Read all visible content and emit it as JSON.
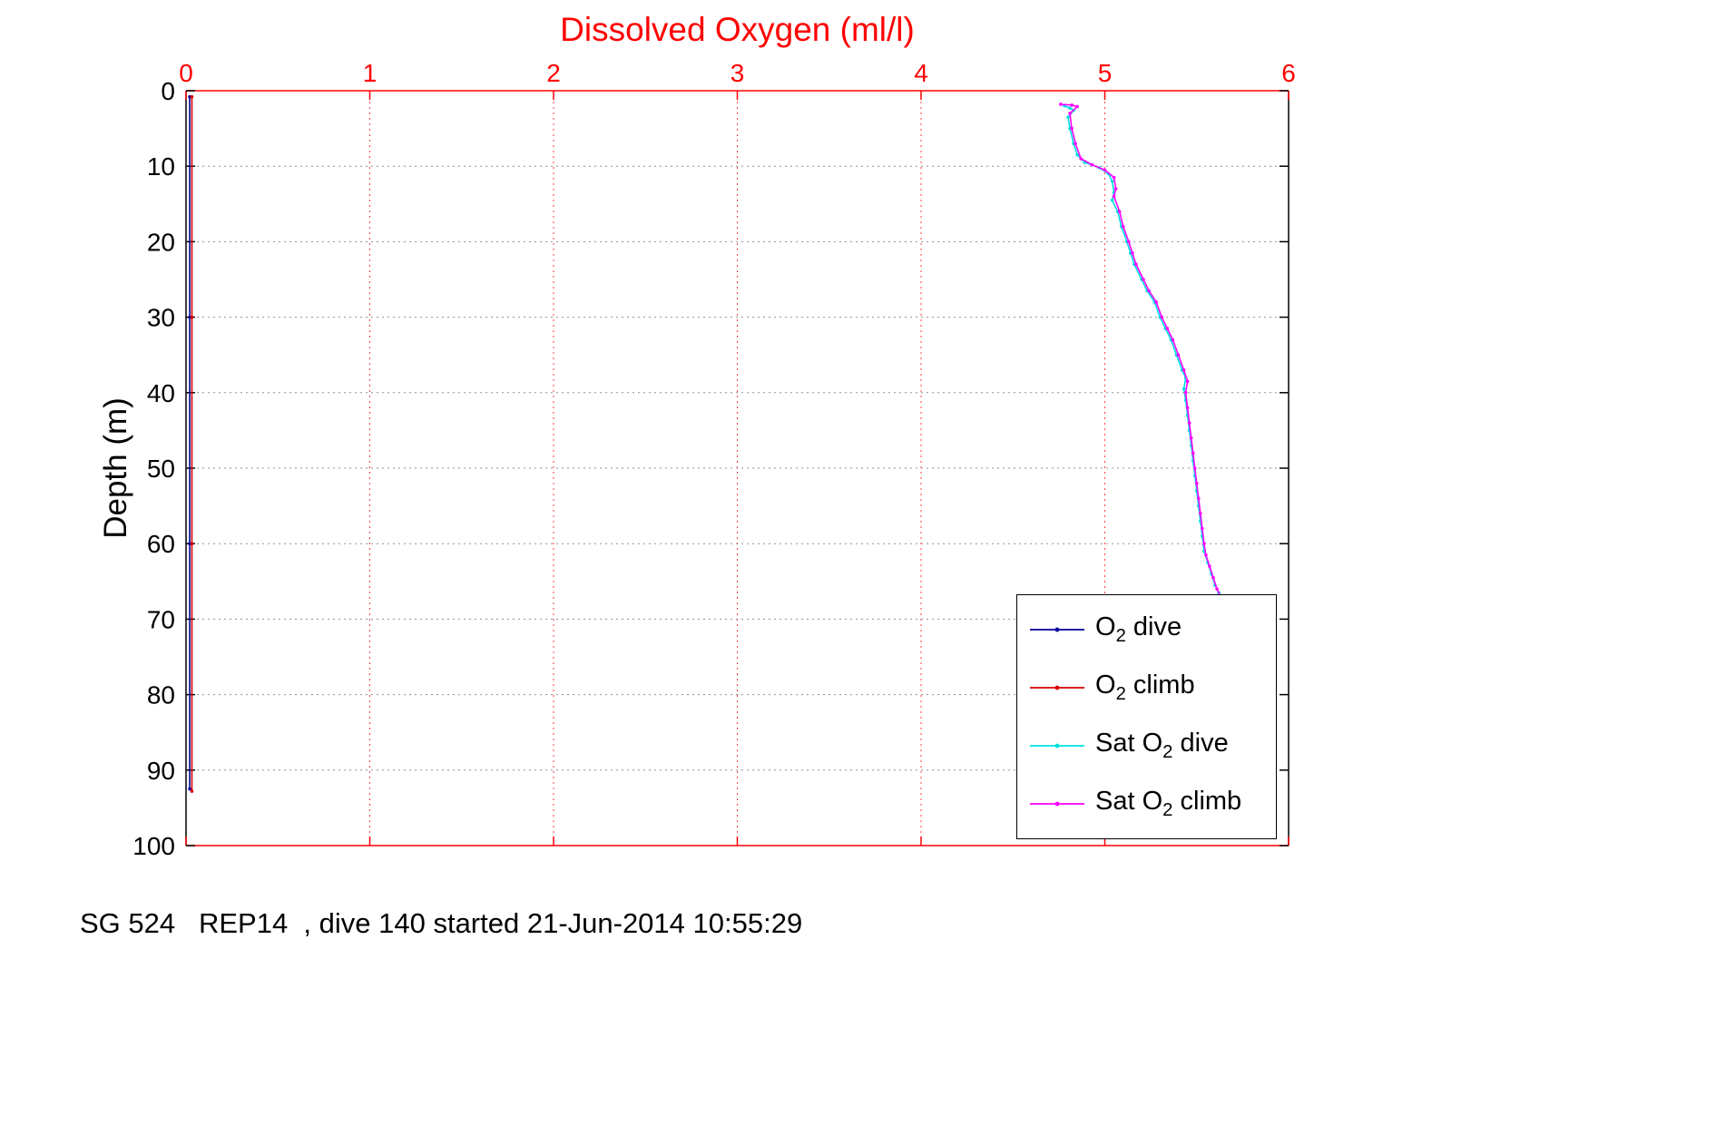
{
  "caption": "SG 524   REP14  , dive 140 started 21-Jun-2014 10:55:29",
  "chart_data": {
    "type": "line",
    "title": "Dissolved Oxygen (ml/l)",
    "xlabel": "Dissolved Oxygen (ml/l)",
    "xlabel_position": "top",
    "ylabel": "Depth (m)",
    "xlim": [
      0,
      6
    ],
    "ylim": [
      0,
      100
    ],
    "y_inverted": true,
    "xticks": [
      0,
      1,
      2,
      3,
      4,
      5,
      6
    ],
    "yticks": [
      0,
      10,
      20,
      30,
      40,
      50,
      60,
      70,
      80,
      90,
      100
    ],
    "grid": true,
    "axis_colors": {
      "x": "#ff0000",
      "y": "#000000"
    },
    "grid_colors": {
      "vertical": "#ff4040",
      "horizontal": "#909090"
    },
    "legend_position": "lower-right",
    "series": [
      {
        "name": "O2 dive",
        "label": {
          "pre": "O",
          "sub": "2",
          "post": " dive"
        },
        "color": "#00009c",
        "points": [
          [
            0.02,
            0.8
          ],
          [
            0.02,
            30
          ],
          [
            0.02,
            60
          ],
          [
            0.02,
            92.5
          ]
        ]
      },
      {
        "name": "O2 climb",
        "label": {
          "pre": "O",
          "sub": "2",
          "post": " climb"
        },
        "color": "#d40000",
        "points": [
          [
            0.032,
            0.8
          ],
          [
            0.032,
            30
          ],
          [
            0.032,
            60
          ],
          [
            0.032,
            92.8
          ]
        ]
      },
      {
        "name": "Sat O2 dive",
        "label": {
          "pre": "Sat O",
          "sub": "2",
          "post": " dive"
        },
        "color": "#00e0e0",
        "points": [
          [
            4.78,
            2.0
          ],
          [
            4.81,
            2.3
          ],
          [
            4.83,
            2.6
          ],
          [
            4.8,
            3.5
          ],
          [
            4.81,
            5.0
          ],
          [
            4.83,
            7.0
          ],
          [
            4.85,
            8.5
          ],
          [
            4.89,
            9.5
          ],
          [
            4.97,
            10.2
          ],
          [
            5.02,
            11.0
          ],
          [
            5.04,
            12.0
          ],
          [
            5.05,
            13.5
          ],
          [
            5.04,
            14.5
          ],
          [
            5.07,
            16.0
          ],
          [
            5.09,
            18.0
          ],
          [
            5.12,
            20.0
          ],
          [
            5.14,
            21.5
          ],
          [
            5.16,
            23.0
          ],
          [
            5.2,
            25.0
          ],
          [
            5.23,
            26.5
          ],
          [
            5.27,
            28.0
          ],
          [
            5.3,
            30.0
          ],
          [
            5.33,
            31.5
          ],
          [
            5.36,
            33.0
          ],
          [
            5.39,
            35.0
          ],
          [
            5.42,
            37.0
          ],
          [
            5.44,
            38.0
          ],
          [
            5.43,
            39.5
          ],
          [
            5.44,
            41.0
          ],
          [
            5.45,
            43.0
          ],
          [
            5.46,
            45.0
          ],
          [
            5.47,
            47.0
          ],
          [
            5.48,
            49.0
          ],
          [
            5.49,
            51.0
          ],
          [
            5.5,
            53.0
          ],
          [
            5.51,
            55.0
          ],
          [
            5.52,
            57.0
          ],
          [
            5.53,
            59.0
          ],
          [
            5.54,
            61.0
          ],
          [
            5.56,
            62.5
          ],
          [
            5.58,
            64.0
          ],
          [
            5.6,
            65.5
          ],
          [
            5.62,
            66.5
          ]
        ]
      },
      {
        "name": "Sat O2 climb",
        "label": {
          "pre": "Sat O",
          "sub": "2",
          "post": " climb"
        },
        "color": "#ff00ff",
        "points": [
          [
            4.76,
            1.8
          ],
          [
            4.82,
            1.9
          ],
          [
            4.85,
            2.1
          ],
          [
            4.81,
            3.0
          ],
          [
            4.82,
            5.0
          ],
          [
            4.84,
            7.0
          ],
          [
            4.87,
            9.0
          ],
          [
            4.93,
            9.8
          ],
          [
            5.0,
            10.5
          ],
          [
            5.05,
            11.5
          ],
          [
            5.06,
            13.0
          ],
          [
            5.05,
            14.0
          ],
          [
            5.08,
            16.0
          ],
          [
            5.1,
            18.0
          ],
          [
            5.13,
            20.0
          ],
          [
            5.15,
            21.5
          ],
          [
            5.17,
            23.0
          ],
          [
            5.21,
            25.0
          ],
          [
            5.24,
            26.5
          ],
          [
            5.28,
            28.0
          ],
          [
            5.31,
            30.0
          ],
          [
            5.34,
            31.5
          ],
          [
            5.37,
            33.0
          ],
          [
            5.4,
            35.0
          ],
          [
            5.43,
            37.0
          ],
          [
            5.45,
            38.5
          ],
          [
            5.44,
            40.0
          ],
          [
            5.45,
            42.0
          ],
          [
            5.46,
            44.0
          ],
          [
            5.47,
            46.0
          ],
          [
            5.48,
            48.0
          ],
          [
            5.49,
            50.0
          ],
          [
            5.5,
            52.0
          ],
          [
            5.51,
            54.0
          ],
          [
            5.52,
            56.0
          ],
          [
            5.53,
            58.0
          ],
          [
            5.54,
            60.0
          ],
          [
            5.55,
            61.5
          ],
          [
            5.57,
            63.0
          ],
          [
            5.59,
            64.5
          ],
          [
            5.61,
            66.0
          ],
          [
            5.63,
            67.0
          ]
        ]
      }
    ]
  }
}
